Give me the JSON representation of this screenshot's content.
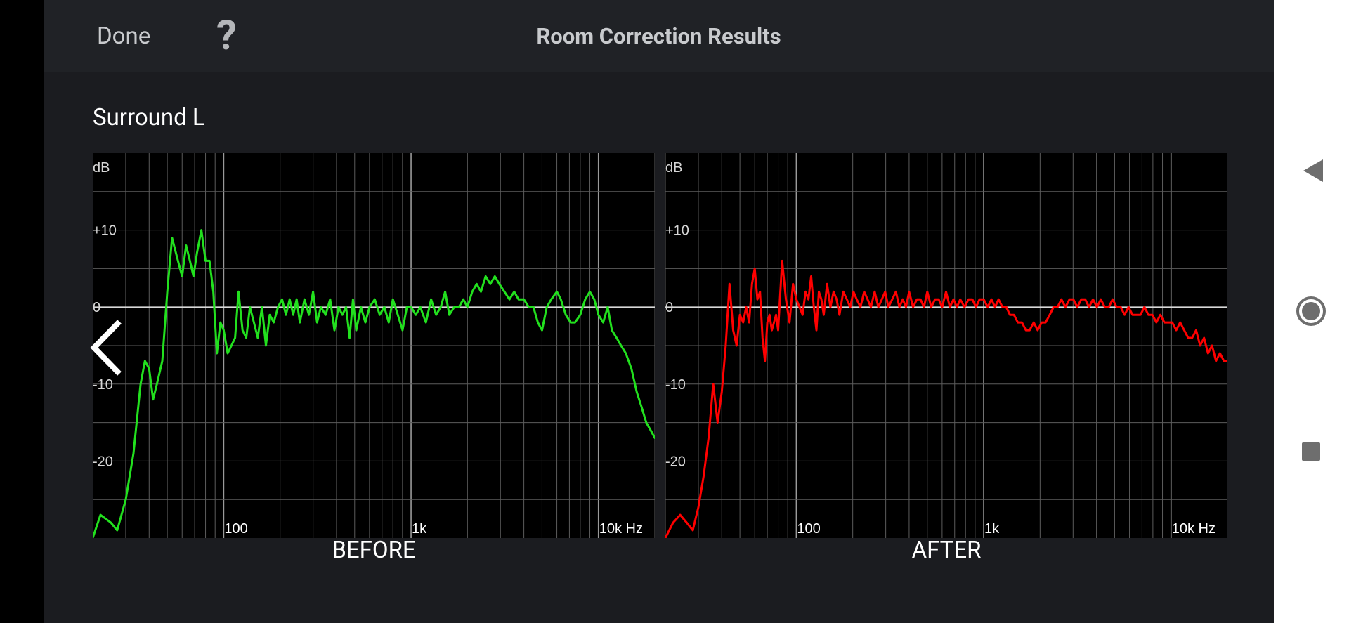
{
  "header": {
    "done_label": "Done",
    "help_label": "?",
    "title": "Room Correction Results"
  },
  "speaker": "Surround L",
  "icons": {
    "prev": "chevron-left-icon",
    "next": "chevron-right-icon",
    "back": "triangle-back-icon",
    "home": "circle-home-icon",
    "recents": "square-recents-icon"
  },
  "colors": {
    "app_background": "#1b1c20",
    "header_background": "#202226",
    "before_curve": "#22e01e",
    "after_curve": "#ff0000",
    "plot_background": "#000000",
    "grid": "#5c5c5c"
  },
  "chart_data": [
    {
      "type": "line",
      "caption": "BEFORE",
      "xscale": "log",
      "xlim": [
        20,
        20000
      ],
      "ylim": [
        -30,
        20
      ],
      "xticks": [
        {
          "value": 100,
          "label": "100"
        },
        {
          "value": 1000,
          "label": "1k"
        },
        {
          "value": 10000,
          "label": "10k Hz"
        }
      ],
      "yticks": [
        {
          "value": 10,
          "label": "+10"
        },
        {
          "value": 0,
          "label": "0"
        },
        {
          "value": -10,
          "label": "-10"
        },
        {
          "value": -20,
          "label": "-20"
        }
      ],
      "yunit": "dB",
      "grid": true,
      "color": "#22e01e",
      "x": [
        20,
        22,
        25,
        27,
        30,
        33,
        36,
        38,
        40,
        42,
        44,
        47,
        50,
        53,
        57,
        60,
        63,
        66,
        69,
        72,
        76,
        80,
        84,
        88,
        92,
        96,
        100,
        105,
        110,
        115,
        120,
        126,
        132,
        138,
        145,
        152,
        160,
        168,
        176,
        185,
        195,
        205,
        215,
        225,
        235,
        245,
        255,
        270,
        285,
        300,
        315,
        330,
        350,
        370,
        390,
        410,
        430,
        450,
        470,
        490,
        510,
        540,
        570,
        600,
        640,
        680,
        720,
        760,
        800,
        850,
        900,
        950,
        1000,
        1060,
        1120,
        1200,
        1280,
        1360,
        1440,
        1520,
        1600,
        1700,
        1800,
        1900,
        2000,
        2120,
        2240,
        2360,
        2500,
        2650,
        2800,
        2960,
        3150,
        3350,
        3550,
        3750,
        4000,
        4250,
        4500,
        4750,
        5000,
        5300,
        5600,
        6000,
        6300,
        6700,
        7100,
        7500,
        8000,
        8500,
        9000,
        9500,
        10000,
        10600,
        11200,
        11800,
        12500,
        13200,
        14000,
        15000,
        16000,
        17000,
        18000,
        19000,
        20000
      ],
      "y": [
        -30,
        -27,
        -28,
        -29,
        -25,
        -19,
        -10,
        -7,
        -8,
        -12,
        -10,
        -7,
        2,
        9,
        6,
        4,
        8,
        6,
        4,
        7,
        10,
        6,
        6,
        2,
        -6,
        -2,
        -3,
        -6,
        -5,
        -4,
        2,
        -3,
        -4,
        0,
        -2,
        -4,
        0,
        -5,
        -1,
        -2,
        0,
        1,
        -1,
        1,
        -1,
        1,
        -2,
        1,
        -1,
        2,
        -2,
        0,
        -1,
        1,
        -3,
        0,
        -1,
        0,
        -4,
        1,
        -3,
        0,
        -2,
        0,
        1,
        -1,
        0,
        -2,
        1,
        -1,
        -3,
        0,
        0,
        -1,
        0,
        -2,
        1,
        -1,
        0,
        2,
        -1,
        0,
        0,
        1,
        0,
        2,
        3,
        2,
        4,
        3,
        4,
        3,
        2,
        1,
        2,
        1,
        1,
        0,
        0,
        -2,
        -3,
        0,
        1,
        2,
        1,
        -1,
        -2,
        -2,
        -1,
        1,
        2,
        1,
        -1,
        -2,
        0,
        -3,
        -4,
        -5,
        -6,
        -8,
        -11,
        -13,
        -15,
        -16,
        -17
      ]
    },
    {
      "type": "line",
      "caption": "AFTER",
      "xscale": "log",
      "xlim": [
        20,
        20000
      ],
      "ylim": [
        -30,
        20
      ],
      "xticks": [
        {
          "value": 100,
          "label": "100"
        },
        {
          "value": 1000,
          "label": "1k"
        },
        {
          "value": 10000,
          "label": "10k Hz"
        }
      ],
      "yticks": [
        {
          "value": 10,
          "label": "+10"
        },
        {
          "value": 0,
          "label": "0"
        },
        {
          "value": -10,
          "label": "-10"
        },
        {
          "value": -20,
          "label": "-20"
        }
      ],
      "yunit": "dB",
      "grid": true,
      "color": "#ff0000",
      "x": [
        20,
        22,
        24,
        26,
        28,
        30,
        32,
        34,
        36,
        38,
        40,
        42,
        44,
        46,
        48,
        50,
        52,
        54,
        56,
        58,
        60,
        62,
        64,
        66,
        68,
        70,
        72,
        74,
        76,
        78,
        80,
        84,
        88,
        92,
        96,
        100,
        104,
        108,
        112,
        116,
        120,
        124,
        128,
        132,
        136,
        140,
        146,
        152,
        158,
        164,
        170,
        178,
        186,
        194,
        202,
        210,
        220,
        230,
        240,
        250,
        262,
        274,
        286,
        298,
        310,
        325,
        340,
        355,
        370,
        385,
        400,
        420,
        440,
        460,
        480,
        500,
        525,
        550,
        575,
        600,
        630,
        660,
        690,
        720,
        750,
        790,
        830,
        870,
        910,
        950,
        1000,
        1050,
        1100,
        1150,
        1200,
        1260,
        1320,
        1380,
        1450,
        1520,
        1600,
        1680,
        1760,
        1850,
        1940,
        2040,
        2140,
        2250,
        2360,
        2480,
        2600,
        2730,
        2870,
        3010,
        3160,
        3320,
        3480,
        3650,
        3830,
        4020,
        4220,
        4430,
        4650,
        4880,
        5120,
        5380,
        5650,
        5930,
        6230,
        6540,
        6870,
        7210,
        7570,
        7950,
        8350,
        8770,
        9210,
        9670,
        10150,
        10660,
        11190,
        11750,
        12340,
        12960,
        13610,
        14290,
        15000,
        15750,
        16540,
        17370,
        18240,
        19150,
        20000
      ],
      "y": [
        -30,
        -28,
        -27,
        -28,
        -29,
        -26,
        -22,
        -17,
        -10,
        -15,
        -11,
        -5,
        3,
        -3,
        -5,
        -1,
        -2,
        0,
        -2,
        3,
        5,
        1,
        2,
        -4,
        -7,
        -2,
        -1,
        -3,
        -2,
        -1,
        -3,
        6,
        1,
        -2,
        3,
        1,
        0,
        -1,
        2,
        1,
        4,
        0,
        -3,
        2,
        1,
        -1,
        3,
        0,
        2,
        1,
        -1,
        2,
        1,
        0,
        2,
        1,
        0,
        2,
        1,
        0,
        2,
        0,
        1,
        2,
        0,
        1,
        2,
        0,
        1,
        0,
        2,
        0,
        1,
        1,
        0,
        2,
        0,
        1,
        1,
        0,
        2,
        0,
        1,
        0,
        1,
        0,
        1,
        1,
        0,
        1,
        1,
        0,
        1,
        0,
        1,
        0,
        0,
        -1,
        -1,
        -2,
        -2,
        -3,
        -3,
        -2,
        -3,
        -2,
        -2,
        -1,
        0,
        0,
        1,
        0,
        1,
        1,
        0,
        1,
        1,
        0,
        1,
        0,
        1,
        0,
        0,
        1,
        0,
        0,
        -1,
        0,
        -1,
        -1,
        -1,
        0,
        -1,
        -1,
        -2,
        -1,
        -2,
        -2,
        -2,
        -3,
        -2,
        -3,
        -4,
        -4,
        -3,
        -5,
        -4,
        -6,
        -5,
        -7,
        -6,
        -7,
        -7
      ]
    }
  ]
}
